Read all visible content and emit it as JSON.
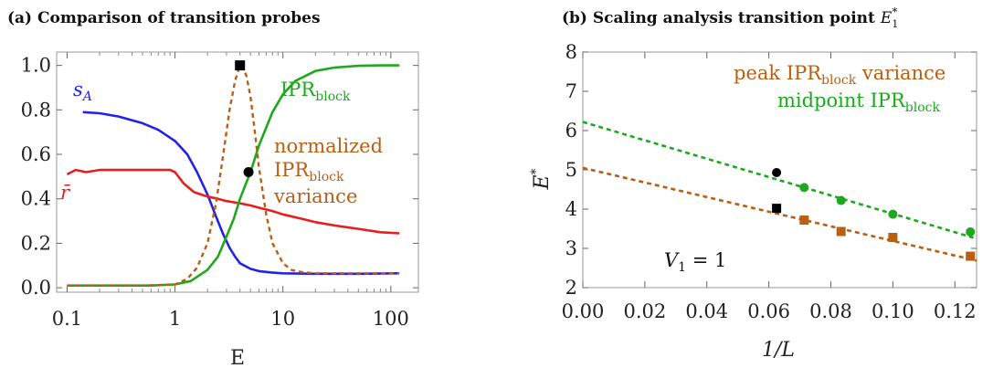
{
  "chart_data": [
    {
      "type": "line",
      "panel": "(a)",
      "title": "(a) Comparison of transition probes",
      "xlabel": "E",
      "ylabel": "",
      "xscale": "log",
      "xlim": [
        0.08,
        180
      ],
      "ylim": [
        -0.02,
        1.06
      ],
      "xticks": [
        {
          "v": 0.1,
          "label": "0.1"
        },
        {
          "v": 1,
          "label": "1"
        },
        {
          "v": 10,
          "label": "10"
        },
        {
          "v": 100,
          "label": "100"
        }
      ],
      "yticks": [
        {
          "v": 0.0,
          "label": "0.0"
        },
        {
          "v": 0.2,
          "label": "0.2"
        },
        {
          "v": 0.4,
          "label": "0.4"
        },
        {
          "v": 0.6,
          "label": "0.6"
        },
        {
          "v": 0.8,
          "label": "0.8"
        },
        {
          "v": 1.0,
          "label": "1.0"
        }
      ],
      "series": [
        {
          "name": "s_A",
          "label_main": "s",
          "label_sub": "A",
          "color": "#2323e6",
          "style": "solid",
          "x": [
            0.14,
            0.2,
            0.3,
            0.5,
            0.7,
            1.0,
            1.3,
            1.6,
            2.0,
            2.4,
            2.8,
            3.2,
            3.6,
            4.0,
            5.0,
            6.0,
            8.0,
            10,
            20,
            50,
            120
          ],
          "y": [
            0.79,
            0.785,
            0.77,
            0.74,
            0.71,
            0.66,
            0.6,
            0.52,
            0.42,
            0.32,
            0.24,
            0.18,
            0.14,
            0.11,
            0.085,
            0.075,
            0.068,
            0.065,
            0.063,
            0.063,
            0.065
          ]
        },
        {
          "name": "r̄",
          "label_main": "r̄",
          "color": "#e61e1e",
          "style": "solid",
          "x": [
            0.1,
            0.12,
            0.15,
            0.2,
            0.3,
            0.5,
            0.7,
            0.9,
            1.0,
            1.2,
            1.5,
            2.0,
            2.5,
            3.0,
            4.0,
            5.0,
            6.0,
            8.0,
            10,
            15,
            20,
            30,
            50,
            80,
            120
          ],
          "y": [
            0.51,
            0.53,
            0.52,
            0.53,
            0.53,
            0.53,
            0.53,
            0.53,
            0.52,
            0.47,
            0.43,
            0.41,
            0.4,
            0.39,
            0.38,
            0.37,
            0.36,
            0.345,
            0.33,
            0.31,
            0.295,
            0.28,
            0.265,
            0.25,
            0.245
          ]
        },
        {
          "name": "IPR_block",
          "label_main": "IPR",
          "label_sub": "block",
          "color": "#1ea81e",
          "style": "solid",
          "x": [
            0.1,
            0.3,
            0.6,
            1.0,
            1.4,
            2.0,
            2.5,
            3.0,
            3.5,
            4.0,
            5.0,
            6.0,
            7.0,
            8.0,
            10,
            13,
            20,
            30,
            50,
            80,
            120
          ],
          "y": [
            0.01,
            0.01,
            0.01,
            0.015,
            0.03,
            0.08,
            0.14,
            0.23,
            0.31,
            0.4,
            0.52,
            0.64,
            0.72,
            0.79,
            0.87,
            0.93,
            0.975,
            0.99,
            0.998,
            1.0,
            1.0
          ]
        },
        {
          "name": "normalized IPR_block variance",
          "label_lines": [
            "normalized",
            "IPR",
            "variance"
          ],
          "label_sub": "block",
          "color": "#b85f14",
          "style": "dashed",
          "x": [
            0.1,
            0.5,
            1.0,
            1.3,
            1.6,
            2.0,
            2.4,
            2.8,
            3.2,
            3.6,
            4.0,
            4.3,
            4.6,
            5.0,
            5.5,
            6.0,
            7.0,
            8.0,
            10,
            12,
            15,
            20,
            50,
            120
          ],
          "y": [
            0.01,
            0.01,
            0.015,
            0.04,
            0.09,
            0.2,
            0.38,
            0.6,
            0.8,
            0.93,
            1.0,
            0.99,
            0.95,
            0.86,
            0.7,
            0.54,
            0.33,
            0.2,
            0.11,
            0.08,
            0.07,
            0.065,
            0.065,
            0.065
          ]
        }
      ],
      "markers": [
        {
          "shape": "square",
          "color": "#000000",
          "x": 4.0,
          "y": 1.0
        },
        {
          "shape": "circle",
          "color": "#000000",
          "x": 4.8,
          "y": 0.52
        }
      ]
    },
    {
      "type": "scatter",
      "panel": "(b)",
      "title": "(b) Scaling analysis transition point",
      "title_symbol": {
        "main": "E",
        "sub": "1",
        "sup": "*"
      },
      "xlabel": "1/L",
      "ylabel": "E",
      "ylabel_sup": "*",
      "xlim": [
        0,
        0.127
      ],
      "ylim": [
        2,
        8
      ],
      "xticks": [
        {
          "v": 0.0,
          "label": "0.00"
        },
        {
          "v": 0.02,
          "label": "0.02"
        },
        {
          "v": 0.04,
          "label": "0.04"
        },
        {
          "v": 0.06,
          "label": "0.06"
        },
        {
          "v": 0.08,
          "label": "0.08"
        },
        {
          "v": 0.1,
          "label": "0.10"
        },
        {
          "v": 0.12,
          "label": "0.12"
        }
      ],
      "yticks": [
        {
          "v": 2,
          "label": "2"
        },
        {
          "v": 3,
          "label": "3"
        },
        {
          "v": 4,
          "label": "4"
        },
        {
          "v": 5,
          "label": "5"
        },
        {
          "v": 6,
          "label": "6"
        },
        {
          "v": 7,
          "label": "7"
        },
        {
          "v": 8,
          "label": "8"
        }
      ],
      "series": [
        {
          "name": "peak IPR_block variance",
          "label_main": "peak IPR",
          "label_sub": "block",
          "label_tail": " variance",
          "color": "#b85f14",
          "marker": "square",
          "x": [
            0.0714,
            0.0833,
            0.1,
            0.125
          ],
          "y": [
            3.72,
            3.43,
            3.28,
            2.8
          ],
          "fit": {
            "intercept": 5.05,
            "slope": -18.6
          }
        },
        {
          "name": "midpoint IPR_block",
          "label_main": "midpoint IPR",
          "label_sub": "block",
          "label_tail": "",
          "color": "#1ea81e",
          "marker": "circle",
          "x": [
            0.0714,
            0.0833,
            0.1,
            0.125
          ],
          "y": [
            4.55,
            4.22,
            3.87,
            3.42
          ],
          "fit": {
            "intercept": 6.22,
            "slope": -23.4
          }
        }
      ],
      "markers": [
        {
          "shape": "square",
          "color": "#000000",
          "x": 0.0625,
          "y": 4.02
        },
        {
          "shape": "circle",
          "color": "#000000",
          "x": 0.0625,
          "y": 4.93
        }
      ],
      "annotation": {
        "main": "V",
        "sub": "1",
        "tail": " = 1"
      }
    }
  ]
}
